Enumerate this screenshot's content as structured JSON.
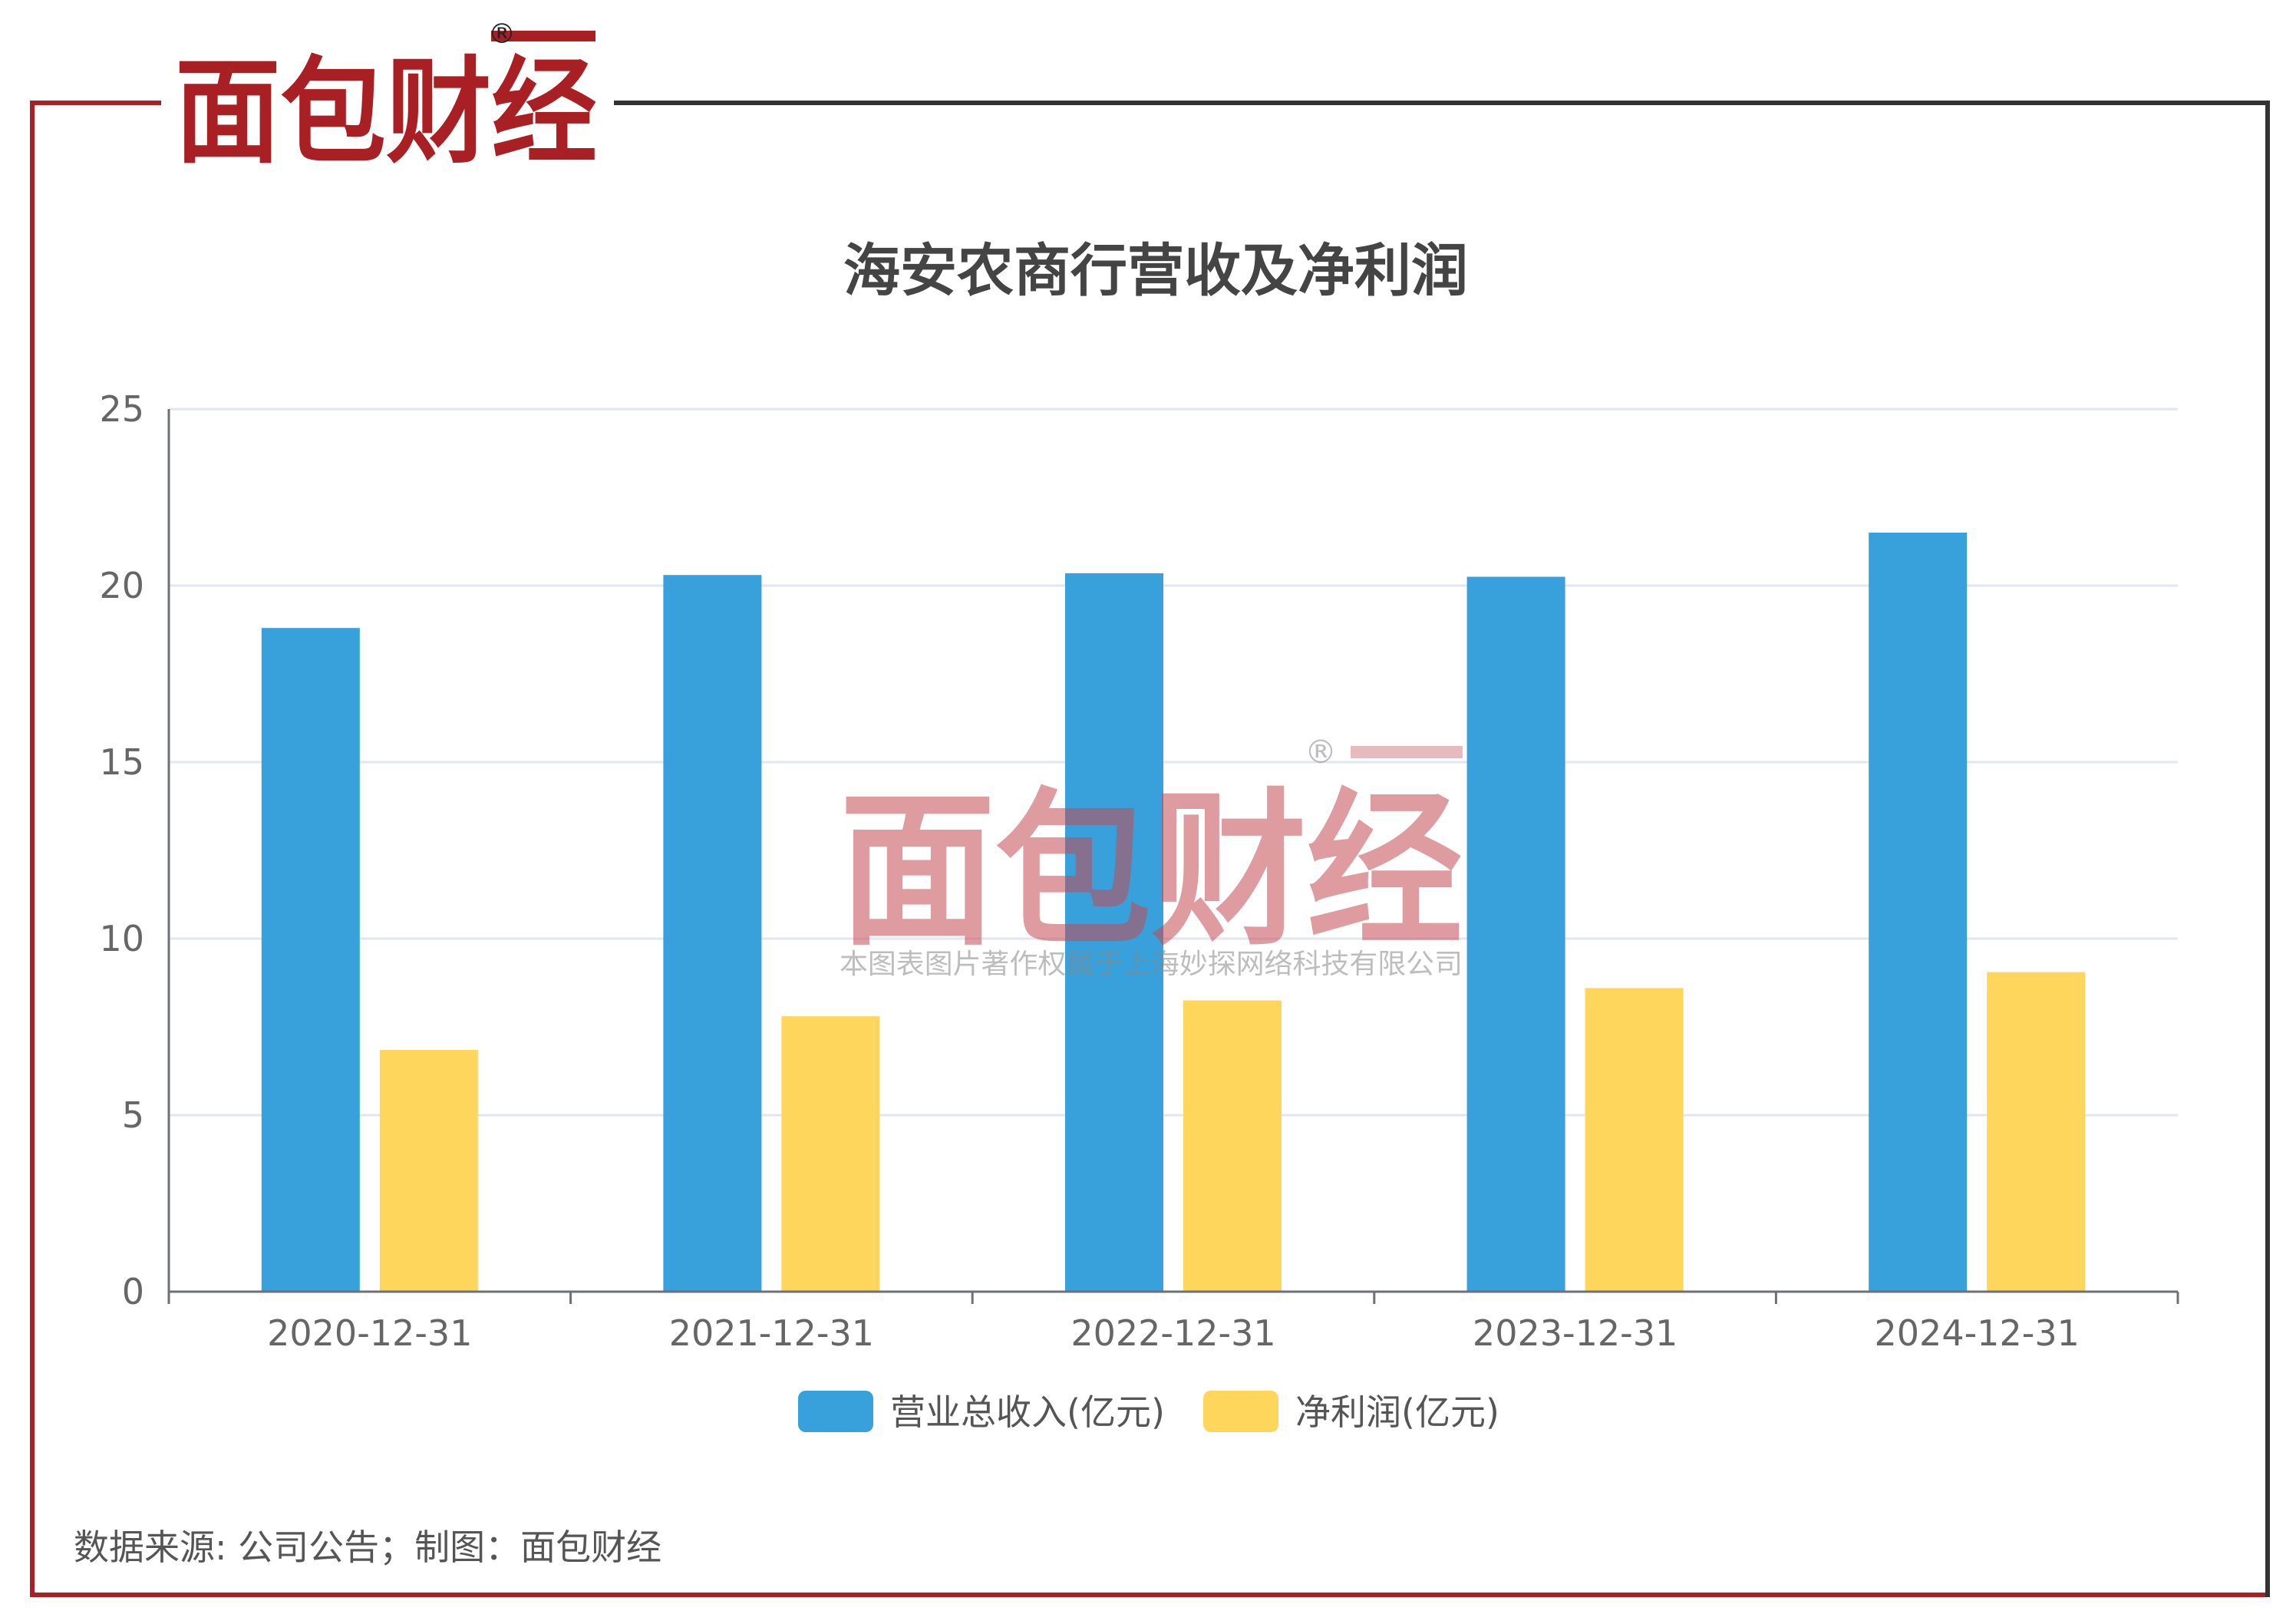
{
  "brand": {
    "logo_text": "面包财经",
    "registered_mark": "®",
    "watermark_text": "面包财经",
    "watermark_caption": "本图表图片著作权属于上海妙探网络科技有限公司",
    "colors": {
      "red": "#a81f24",
      "dark": "#222222",
      "frame_dark": "#333333"
    }
  },
  "source_note": "数据来源: 公司公告；制图：面包财经",
  "chart_data": {
    "type": "bar",
    "title": "海安农商行营收及净利润",
    "categories": [
      "2020-12-31",
      "2021-12-31",
      "2022-12-31",
      "2023-12-31",
      "2024-12-31"
    ],
    "series": [
      {
        "name": "营业总收入(亿元)",
        "color": "#38a0da",
        "values": [
          18.8,
          20.3,
          20.35,
          20.25,
          21.5
        ]
      },
      {
        "name": "净利润(亿元)",
        "color": "#fed65b",
        "values": [
          6.85,
          7.8,
          8.25,
          8.6,
          9.05
        ]
      }
    ],
    "ylim": [
      0,
      25
    ],
    "yticks": [
      "0",
      "5",
      "10",
      "15",
      "20",
      "25"
    ],
    "grid": true,
    "legend_position": "bottom"
  }
}
